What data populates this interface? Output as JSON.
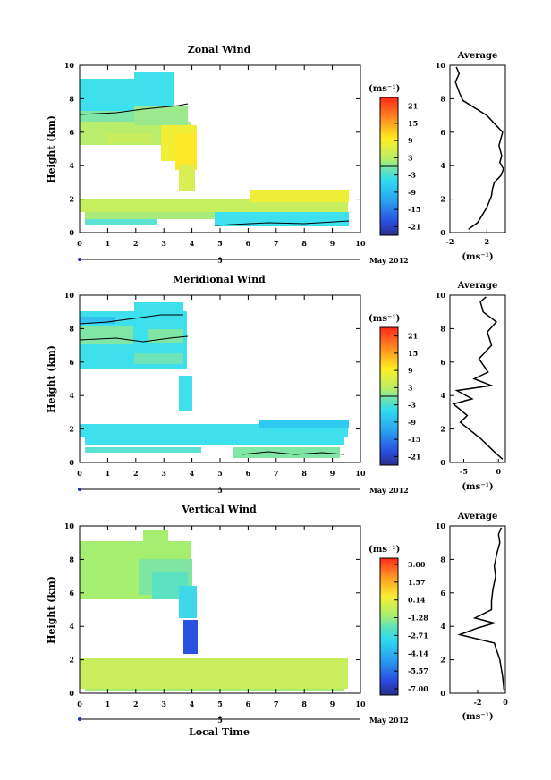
{
  "chart_data": [
    {
      "type": "heatmap",
      "title": "Zonal Wind",
      "ylabel": "Height (km)",
      "xlim": [
        0,
        10
      ],
      "ylim": [
        0,
        10
      ],
      "xticks": [
        "0",
        "1",
        "2",
        "3",
        "4",
        "5",
        "6",
        "7",
        "8",
        "9",
        "10"
      ],
      "yticks": [
        "0",
        "2",
        "4",
        "6",
        "8",
        "10"
      ],
      "colorbar": {
        "unit": "(ms⁻¹)",
        "ticks": [
          "21",
          "15",
          "9",
          "3",
          "-3",
          "-9",
          "-15",
          "-21"
        ],
        "range": [
          -24,
          24
        ]
      },
      "date_axis": {
        "day_label": "5",
        "month_label": "May 2012"
      },
      "profile": {
        "title": "Average",
        "xlabel": "(ms⁻¹)",
        "xlim": [
          -2,
          4
        ],
        "xticks": [
          "-2",
          "2"
        ],
        "x": [
          0.0,
          1.0,
          2.0,
          2.5,
          2.6,
          2.8,
          3.5,
          3.8,
          3.4,
          3.6,
          3.3,
          3.7,
          2.0,
          -0.6,
          -1.0,
          -1.4,
          -1.0,
          -1.3
        ],
        "y": [
          0.2,
          0.6,
          1.5,
          2.2,
          2.6,
          3.0,
          3.4,
          3.8,
          4.2,
          4.6,
          5.2,
          6.0,
          7.0,
          7.9,
          8.4,
          9.0,
          9.5,
          9.9
        ]
      }
    },
    {
      "type": "heatmap",
      "title": "Meridional Wind",
      "ylabel": "Height (km)",
      "xlim": [
        0,
        10
      ],
      "ylim": [
        0,
        10
      ],
      "xticks": [
        "0",
        "1",
        "2",
        "3",
        "4",
        "5",
        "6",
        "7",
        "8",
        "9",
        "10"
      ],
      "yticks": [
        "0",
        "2",
        "4",
        "6",
        "8",
        "10"
      ],
      "colorbar": {
        "unit": "(ms⁻¹)",
        "ticks": [
          "21",
          "15",
          "9",
          "3",
          "-3",
          "-9",
          "-15",
          "-21"
        ],
        "range": [
          -24,
          24
        ]
      },
      "date_axis": {
        "day_label": "5",
        "month_label": "May 2012"
      },
      "profile": {
        "title": "Average",
        "xlabel": "(ms⁻¹)",
        "xlim": [
          -7,
          1
        ],
        "xticks": [
          "-5",
          "0"
        ],
        "x": [
          0.6,
          -0.5,
          -2.5,
          -5.5,
          -4.5,
          -6.5,
          -3.8,
          -6.0,
          -1.0,
          -3.5,
          -1.5,
          -2.8,
          -1.0,
          -1.6,
          -0.3,
          -2.2,
          -2.6,
          -1.8
        ],
        "y": [
          0.2,
          0.6,
          1.4,
          2.4,
          2.8,
          3.5,
          3.8,
          4.3,
          4.6,
          5.0,
          5.4,
          6.2,
          7.0,
          7.8,
          8.4,
          9.0,
          9.6,
          9.9
        ]
      }
    },
    {
      "type": "heatmap",
      "title": "Vertical Wind",
      "ylabel": "Height (km)",
      "xlabel": "Local Time",
      "xlim": [
        0,
        10
      ],
      "ylim": [
        0,
        10
      ],
      "xticks": [
        "0",
        "1",
        "2",
        "3",
        "4",
        "5",
        "6",
        "7",
        "8",
        "9",
        "10"
      ],
      "yticks": [
        "0",
        "2",
        "4",
        "6",
        "8",
        "10"
      ],
      "colorbar": {
        "unit": "(ms⁻¹)",
        "ticks": [
          "3.00",
          "1.57",
          "0.14",
          "-1.28",
          "-2.71",
          "-4.14",
          "-5.57",
          "-7.00"
        ],
        "range": [
          -7.5,
          3.5
        ]
      },
      "date_axis": {
        "day_label": "5",
        "month_label": "May 2012"
      },
      "profile": {
        "title": "Average",
        "xlabel": "(ms⁻¹)",
        "xlim": [
          -4,
          0
        ],
        "xticks": [
          "-2",
          "0"
        ],
        "x": [
          -0.1,
          -0.2,
          -0.4,
          -0.8,
          -3.3,
          -2.0,
          -0.8,
          -2.2,
          -1.0,
          -1.0,
          -0.9,
          -0.7,
          -0.8,
          -0.6,
          -0.4,
          -0.5,
          -0.3
        ],
        "y": [
          0.2,
          1.0,
          2.0,
          3.0,
          3.5,
          3.9,
          4.2,
          4.5,
          5.0,
          5.5,
          6.2,
          7.0,
          7.6,
          8.4,
          9.0,
          9.5,
          9.9
        ]
      }
    }
  ]
}
